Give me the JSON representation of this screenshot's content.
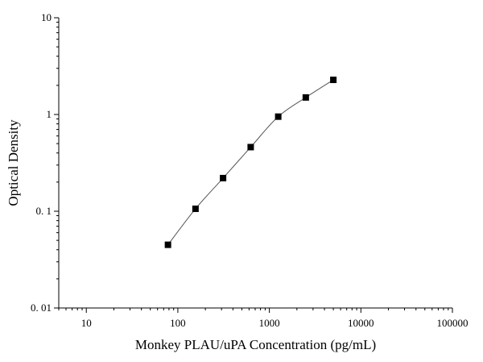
{
  "chart_data": {
    "type": "scatter",
    "title": "",
    "xlabel": "Monkey PLAU/uPA Concentration (pg/mL)",
    "ylabel": "Optical Density",
    "x_scale": "log",
    "y_scale": "log",
    "xlim": [
      5,
      100000
    ],
    "ylim": [
      0.01,
      10
    ],
    "x_ticks": [
      10,
      100,
      1000,
      10000,
      100000
    ],
    "x_tick_labels": [
      "10",
      "100",
      "1000",
      "10000",
      "100000"
    ],
    "y_ticks": [
      0.01,
      0.1,
      1,
      10
    ],
    "y_tick_labels": [
      "0. 01",
      "0. 1",
      "1",
      "10"
    ],
    "grid": false,
    "legend": "none",
    "series": [
      {
        "x": [
          78,
          156,
          312,
          625,
          1250,
          2500,
          5000
        ],
        "y": [
          0.045,
          0.106,
          0.22,
          0.46,
          0.95,
          1.5,
          2.28
        ],
        "marker": "square",
        "line": "smooth",
        "line_color": "#555555",
        "marker_color": "#000000"
      }
    ]
  }
}
